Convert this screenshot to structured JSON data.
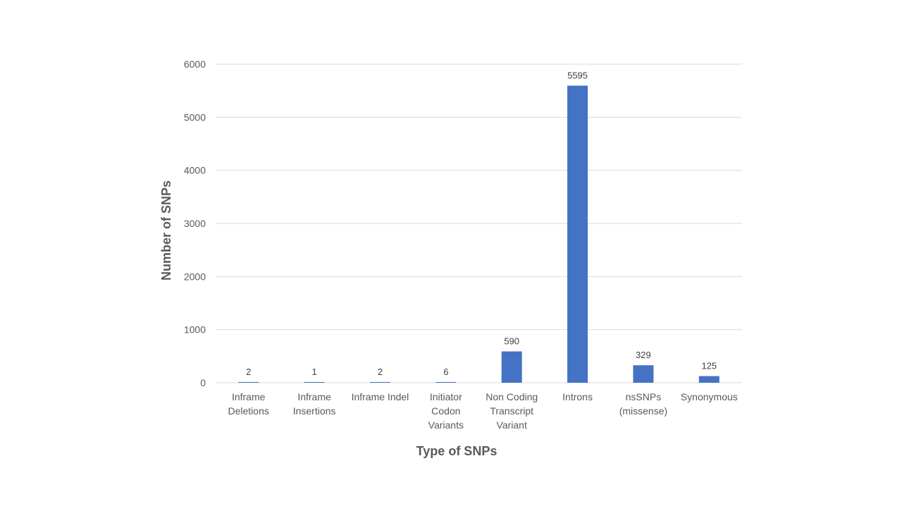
{
  "chart_data": {
    "type": "bar",
    "title": "",
    "xlabel": "Type of SNPs",
    "ylabel": "Number of SNPs",
    "categories": [
      [
        "Inframe",
        "Deletions"
      ],
      [
        "Inframe",
        "Insertions"
      ],
      [
        "Inframe Indel"
      ],
      [
        "Initiator",
        "Codon",
        "Variants"
      ],
      [
        "Non Coding",
        "Transcript",
        "Variant"
      ],
      [
        "Introns"
      ],
      [
        "nsSNPs",
        "(missense)"
      ],
      [
        "Synonymous"
      ]
    ],
    "values": [
      2,
      1,
      2,
      6,
      590,
      5595,
      329,
      125
    ],
    "data_labels": [
      "2",
      "1",
      "2",
      "6",
      "590",
      "5595",
      "329",
      "125"
    ],
    "ylim": [
      0,
      6000
    ],
    "yticks": [
      0,
      1000,
      2000,
      3000,
      4000,
      5000,
      6000
    ],
    "ytick_labels": [
      "0",
      "1000",
      "2000",
      "3000",
      "4000",
      "5000",
      "6000"
    ],
    "grid": true,
    "legend": "none",
    "bar_color": "#4472c4"
  }
}
